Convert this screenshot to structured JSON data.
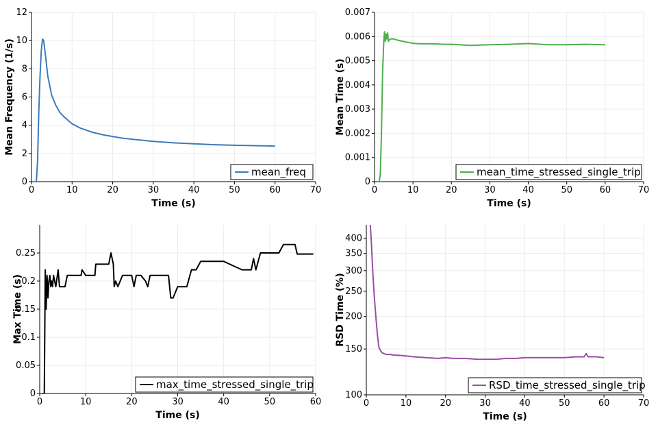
{
  "chart_data": [
    {
      "type": "line",
      "xlabel": "Time (s)",
      "ylabel": "Mean Frequency (1/s)",
      "xlim": [
        0,
        70
      ],
      "ylim": [
        0,
        12
      ],
      "xticks": [
        0,
        10,
        20,
        30,
        40,
        50,
        60,
        70
      ],
      "yticks": [
        0,
        2,
        4,
        6,
        8,
        10,
        12
      ],
      "yscale": "linear",
      "grid": true,
      "legend_position": "bottom-right",
      "series": [
        {
          "name": "mean_freq",
          "color": "#3b7bb8",
          "x": [
            1.2,
            1.5,
            1.8,
            2.1,
            2.4,
            2.7,
            3.0,
            3.5,
            4.0,
            5.0,
            6.0,
            7.0,
            8.0,
            10.0,
            12.0,
            15.0,
            18.0,
            20.0,
            22.0,
            25.0,
            30.0,
            35.0,
            40.0,
            45.0,
            50.0,
            55.0,
            60.0
          ],
          "y": [
            0,
            1.5,
            5.0,
            7.5,
            9.2,
            10.1,
            10.0,
            8.8,
            7.5,
            6.1,
            5.4,
            4.9,
            4.6,
            4.1,
            3.8,
            3.5,
            3.3,
            3.2,
            3.1,
            3.0,
            2.85,
            2.75,
            2.68,
            2.62,
            2.58,
            2.55,
            2.52
          ]
        }
      ]
    },
    {
      "type": "line",
      "xlabel": "Time (s)",
      "ylabel": "Mean Time (s)",
      "xlim": [
        0,
        70
      ],
      "ylim": [
        0,
        0.007
      ],
      "xticks": [
        0,
        10,
        20,
        30,
        40,
        50,
        60,
        70
      ],
      "yticks": [
        0,
        0.001,
        0.002,
        0.003,
        0.004,
        0.005,
        0.006,
        0.007
      ],
      "ytick_labels": [
        "0",
        "0.001",
        "0.002",
        "0.003",
        "0.004",
        "0.005",
        "0.006",
        "0.007"
      ],
      "yscale": "linear",
      "grid": true,
      "legend_position": "bottom-right",
      "series": [
        {
          "name": "mean_time_stressed_single_trip",
          "color": "#4daf4a",
          "x": [
            1.2,
            1.5,
            1.8,
            2.1,
            2.4,
            2.6,
            2.8,
            3.0,
            3.2,
            3.4,
            3.6,
            3.8,
            4.2,
            5,
            6,
            8,
            10,
            12,
            15,
            18,
            20,
            22,
            25,
            30,
            35,
            40,
            45,
            50,
            55,
            60
          ],
          "y": [
            0,
            0.0003,
            0.002,
            0.0045,
            0.0058,
            0.0062,
            0.0058,
            0.0061,
            0.0059,
            0.00615,
            0.0058,
            0.00585,
            0.0059,
            0.0059,
            0.00585,
            0.00578,
            0.00572,
            0.0057,
            0.0057,
            0.00568,
            0.00568,
            0.00566,
            0.00563,
            0.00566,
            0.00568,
            0.00571,
            0.00566,
            0.00566,
            0.00568,
            0.00566
          ]
        }
      ]
    },
    {
      "type": "line",
      "xlabel": "Time (s)",
      "ylabel": "Max Time (s)",
      "xlim": [
        0,
        60
      ],
      "ylim": [
        0,
        0.3
      ],
      "xticks": [
        0,
        10,
        20,
        30,
        40,
        50,
        60
      ],
      "yticks": [
        0,
        0.05,
        0.1,
        0.15,
        0.2,
        0.25
      ],
      "ytick_labels": [
        "0",
        "0.05",
        "0.1",
        "0.15",
        "0.2",
        "0.25"
      ],
      "yscale": "linear",
      "grid": true,
      "legend_position": "bottom-right",
      "series": [
        {
          "name": "max_time_stressed_single_trip",
          "color": "#000000",
          "x": [
            0.5,
            1.0,
            1.2,
            1.4,
            1.6,
            1.8,
            2.0,
            2.2,
            2.4,
            2.6,
            2.8,
            3.0,
            3.5,
            4.0,
            4.3,
            4.6,
            5.0,
            5.5,
            6.0,
            8.0,
            9.0,
            9.2,
            10.0,
            12.0,
            12.2,
            13.0,
            15.0,
            15.5,
            16.0,
            16.2,
            16.5,
            17.0,
            18.0,
            19.0,
            20.0,
            20.5,
            21.0,
            22.0,
            23.0,
            23.5,
            24.0,
            25.0,
            25.5,
            28.0,
            28.5,
            29.0,
            30.0,
            32.0,
            33.0,
            34.0,
            35.0,
            40.0,
            44.0,
            46.0,
            46.5,
            47.0,
            48.0,
            50.0,
            52.0,
            53.0,
            54.0,
            55.0,
            55.5,
            56.0,
            58.0,
            58.5,
            59.0,
            59.5
          ],
          "y": [
            0,
            0,
            0.22,
            0.15,
            0.21,
            0.17,
            0.2,
            0.21,
            0.19,
            0.2,
            0.19,
            0.21,
            0.19,
            0.22,
            0.19,
            0.19,
            0.19,
            0.19,
            0.21,
            0.21,
            0.21,
            0.22,
            0.21,
            0.21,
            0.23,
            0.23,
            0.23,
            0.25,
            0.23,
            0.19,
            0.2,
            0.19,
            0.21,
            0.21,
            0.21,
            0.19,
            0.21,
            0.21,
            0.2,
            0.19,
            0.21,
            0.21,
            0.21,
            0.21,
            0.17,
            0.17,
            0.19,
            0.19,
            0.22,
            0.22,
            0.235,
            0.235,
            0.22,
            0.22,
            0.24,
            0.22,
            0.25,
            0.25,
            0.25,
            0.265,
            0.265,
            0.265,
            0.265,
            0.248,
            0.248,
            0.248,
            0.248,
            0.248
          ]
        }
      ]
    },
    {
      "type": "line",
      "xlabel": "Time (s)",
      "ylabel": "RSD Time (%)",
      "xlim": [
        0,
        70
      ],
      "ylim": [
        100,
        450
      ],
      "xticks": [
        0,
        10,
        20,
        30,
        40,
        50,
        60,
        70
      ],
      "yticks": [
        100,
        150,
        200,
        250,
        300,
        350,
        400
      ],
      "yscale": "log",
      "grid": true,
      "legend_position": "bottom-right",
      "series": [
        {
          "name": "RSD_time_stressed_single_trip",
          "color": "#984ea3",
          "x": [
            1.0,
            1.3,
            1.6,
            2.0,
            2.4,
            2.8,
            3.2,
            3.6,
            4.0,
            4.5,
            5.0,
            6.0,
            7.0,
            8.0,
            10.0,
            12.0,
            15.0,
            18.0,
            20.0,
            22.0,
            25.0,
            28.0,
            30.0,
            33.0,
            35.0,
            38.0,
            40.0,
            43.0,
            45.0,
            48.0,
            50.0,
            53.0,
            55.0,
            55.5,
            56.0,
            58.0,
            60.0
          ],
          "y": [
            450,
            380,
            300,
            240,
            200,
            170,
            152,
            148,
            145,
            144,
            143,
            143,
            142,
            142,
            141,
            140,
            139,
            138,
            139,
            138,
            138,
            137,
            137,
            137,
            138,
            138,
            139,
            139,
            139,
            139,
            139,
            140,
            140,
            144,
            140,
            140,
            139
          ]
        }
      ]
    }
  ]
}
